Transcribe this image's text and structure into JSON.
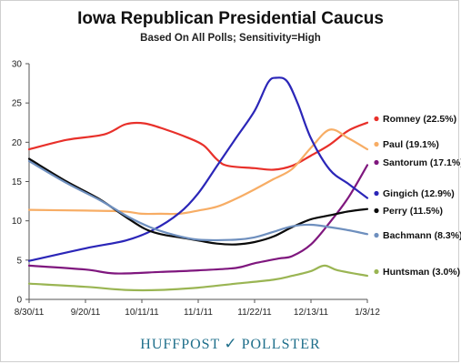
{
  "chart_data": {
    "type": "line",
    "title": "Iowa Republican Presidential Caucus",
    "subtitle": "Based On All Polls; Sensitivity=High",
    "xlabel": "",
    "ylabel": "",
    "ylim": [
      0,
      30
    ],
    "yticks": [
      0,
      5,
      10,
      15,
      20,
      25,
      30
    ],
    "xlim": [
      "2011-08-30",
      "2012-01-03"
    ],
    "xticks": [
      "2011-08-30",
      "2011-09-20",
      "2011-10-11",
      "2011-11-01",
      "2011-11-22",
      "2011-12-13",
      "2012-01-03"
    ],
    "xtick_labels": [
      "8/30/11",
      "9/20/11",
      "10/11/11",
      "11/1/11",
      "11/22/11",
      "12/13/11",
      "1/3/12"
    ],
    "grid": false,
    "legend": "right, at line ends",
    "series": [
      {
        "name": "Romney",
        "label": "Romney (22.5%)",
        "color": "#e8302a",
        "points": [
          [
            "2011-08-30",
            19.1
          ],
          [
            "2011-09-13",
            20.3
          ],
          [
            "2011-09-27",
            21.0
          ],
          [
            "2011-10-05",
            22.3
          ],
          [
            "2011-10-12",
            22.4
          ],
          [
            "2011-10-20",
            21.6
          ],
          [
            "2011-10-28",
            20.6
          ],
          [
            "2011-11-03",
            19.6
          ],
          [
            "2011-11-08",
            17.8
          ],
          [
            "2011-11-12",
            17.0
          ],
          [
            "2011-11-22",
            16.7
          ],
          [
            "2011-11-29",
            16.5
          ],
          [
            "2011-12-06",
            17.0
          ],
          [
            "2011-12-13",
            18.3
          ],
          [
            "2011-12-20",
            19.7
          ],
          [
            "2011-12-27",
            21.5
          ],
          [
            "2012-01-03",
            22.5
          ]
        ]
      },
      {
        "name": "Paul",
        "label": "Paul (19.1%)",
        "color": "#f7ad65",
        "points": [
          [
            "2011-08-30",
            11.4
          ],
          [
            "2011-09-20",
            11.3
          ],
          [
            "2011-10-04",
            11.2
          ],
          [
            "2011-10-11",
            10.9
          ],
          [
            "2011-10-18",
            10.9
          ],
          [
            "2011-10-25",
            10.9
          ],
          [
            "2011-11-01",
            11.3
          ],
          [
            "2011-11-08",
            11.8
          ],
          [
            "2011-11-15",
            12.8
          ],
          [
            "2011-11-22",
            14.0
          ],
          [
            "2011-11-29",
            15.3
          ],
          [
            "2011-12-06",
            16.6
          ],
          [
            "2011-12-13",
            19.3
          ],
          [
            "2011-12-20",
            21.6
          ],
          [
            "2011-12-27",
            20.5
          ],
          [
            "2012-01-03",
            19.1
          ]
        ]
      },
      {
        "name": "Santorum",
        "label": "Santorum (17.1%)",
        "color": "#7f177e",
        "points": [
          [
            "2011-08-30",
            4.3
          ],
          [
            "2011-09-20",
            3.8
          ],
          [
            "2011-10-01",
            3.3
          ],
          [
            "2011-10-18",
            3.5
          ],
          [
            "2011-11-01",
            3.7
          ],
          [
            "2011-11-15",
            4.0
          ],
          [
            "2011-11-22",
            4.6
          ],
          [
            "2011-12-01",
            5.2
          ],
          [
            "2011-12-06",
            5.5
          ],
          [
            "2011-12-13",
            7.0
          ],
          [
            "2011-12-20",
            9.8
          ],
          [
            "2011-12-27",
            13.0
          ],
          [
            "2012-01-03",
            17.1
          ]
        ]
      },
      {
        "name": "Gingich",
        "label": "Gingich (12.9%)",
        "color": "#2b26b8",
        "points": [
          [
            "2011-08-30",
            4.9
          ],
          [
            "2011-09-20",
            6.5
          ],
          [
            "2011-10-05",
            7.5
          ],
          [
            "2011-10-15",
            8.8
          ],
          [
            "2011-10-25",
            11.0
          ],
          [
            "2011-11-01",
            13.5
          ],
          [
            "2011-11-08",
            17.0
          ],
          [
            "2011-11-15",
            20.5
          ],
          [
            "2011-11-22",
            24.0
          ],
          [
            "2011-11-27",
            27.6
          ],
          [
            "2011-11-30",
            28.2
          ],
          [
            "2011-12-04",
            27.8
          ],
          [
            "2011-12-08",
            25.0
          ],
          [
            "2011-12-13",
            20.5
          ],
          [
            "2011-12-20",
            16.5
          ],
          [
            "2011-12-27",
            14.7
          ],
          [
            "2012-01-03",
            12.9
          ]
        ]
      },
      {
        "name": "Perry",
        "label": "Perry (11.5%)",
        "color": "#0a0a0a",
        "points": [
          [
            "2011-08-30",
            17.9
          ],
          [
            "2011-09-13",
            15.0
          ],
          [
            "2011-09-25",
            12.8
          ],
          [
            "2011-10-05",
            10.5
          ],
          [
            "2011-10-12",
            9.0
          ],
          [
            "2011-10-18",
            8.3
          ],
          [
            "2011-10-25",
            7.9
          ],
          [
            "2011-11-01",
            7.5
          ],
          [
            "2011-11-08",
            7.1
          ],
          [
            "2011-11-15",
            7.0
          ],
          [
            "2011-11-22",
            7.3
          ],
          [
            "2011-11-29",
            8.0
          ],
          [
            "2011-12-06",
            9.2
          ],
          [
            "2011-12-13",
            10.2
          ],
          [
            "2011-12-20",
            10.7
          ],
          [
            "2011-12-27",
            11.2
          ],
          [
            "2012-01-03",
            11.5
          ]
        ]
      },
      {
        "name": "Bachmann",
        "label": "Bachmann (8.3%)",
        "color": "#6e8fbe",
        "points": [
          [
            "2011-08-30",
            17.6
          ],
          [
            "2011-09-13",
            14.8
          ],
          [
            "2011-09-25",
            12.7
          ],
          [
            "2011-10-06",
            10.5
          ],
          [
            "2011-10-14",
            9.2
          ],
          [
            "2011-10-22",
            8.3
          ],
          [
            "2011-11-01",
            7.6
          ],
          [
            "2011-11-15",
            7.6
          ],
          [
            "2011-11-22",
            7.9
          ],
          [
            "2011-11-29",
            8.6
          ],
          [
            "2011-12-06",
            9.3
          ],
          [
            "2011-12-13",
            9.5
          ],
          [
            "2011-12-20",
            9.2
          ],
          [
            "2011-12-27",
            8.8
          ],
          [
            "2012-01-03",
            8.3
          ]
        ]
      },
      {
        "name": "Huntsman",
        "label": "Huntsman (3.0%)",
        "color": "#9ab553",
        "points": [
          [
            "2011-08-30",
            2.0
          ],
          [
            "2011-09-20",
            1.6
          ],
          [
            "2011-10-05",
            1.2
          ],
          [
            "2011-10-18",
            1.2
          ],
          [
            "2011-11-01",
            1.5
          ],
          [
            "2011-11-15",
            2.0
          ],
          [
            "2011-11-29",
            2.5
          ],
          [
            "2011-12-06",
            3.0
          ],
          [
            "2011-12-13",
            3.6
          ],
          [
            "2011-12-18",
            4.3
          ],
          [
            "2011-12-23",
            3.7
          ],
          [
            "2012-01-03",
            3.0
          ]
        ]
      }
    ]
  },
  "brand": {
    "left": "HUFFPOST",
    "right": "POLLSTER"
  }
}
